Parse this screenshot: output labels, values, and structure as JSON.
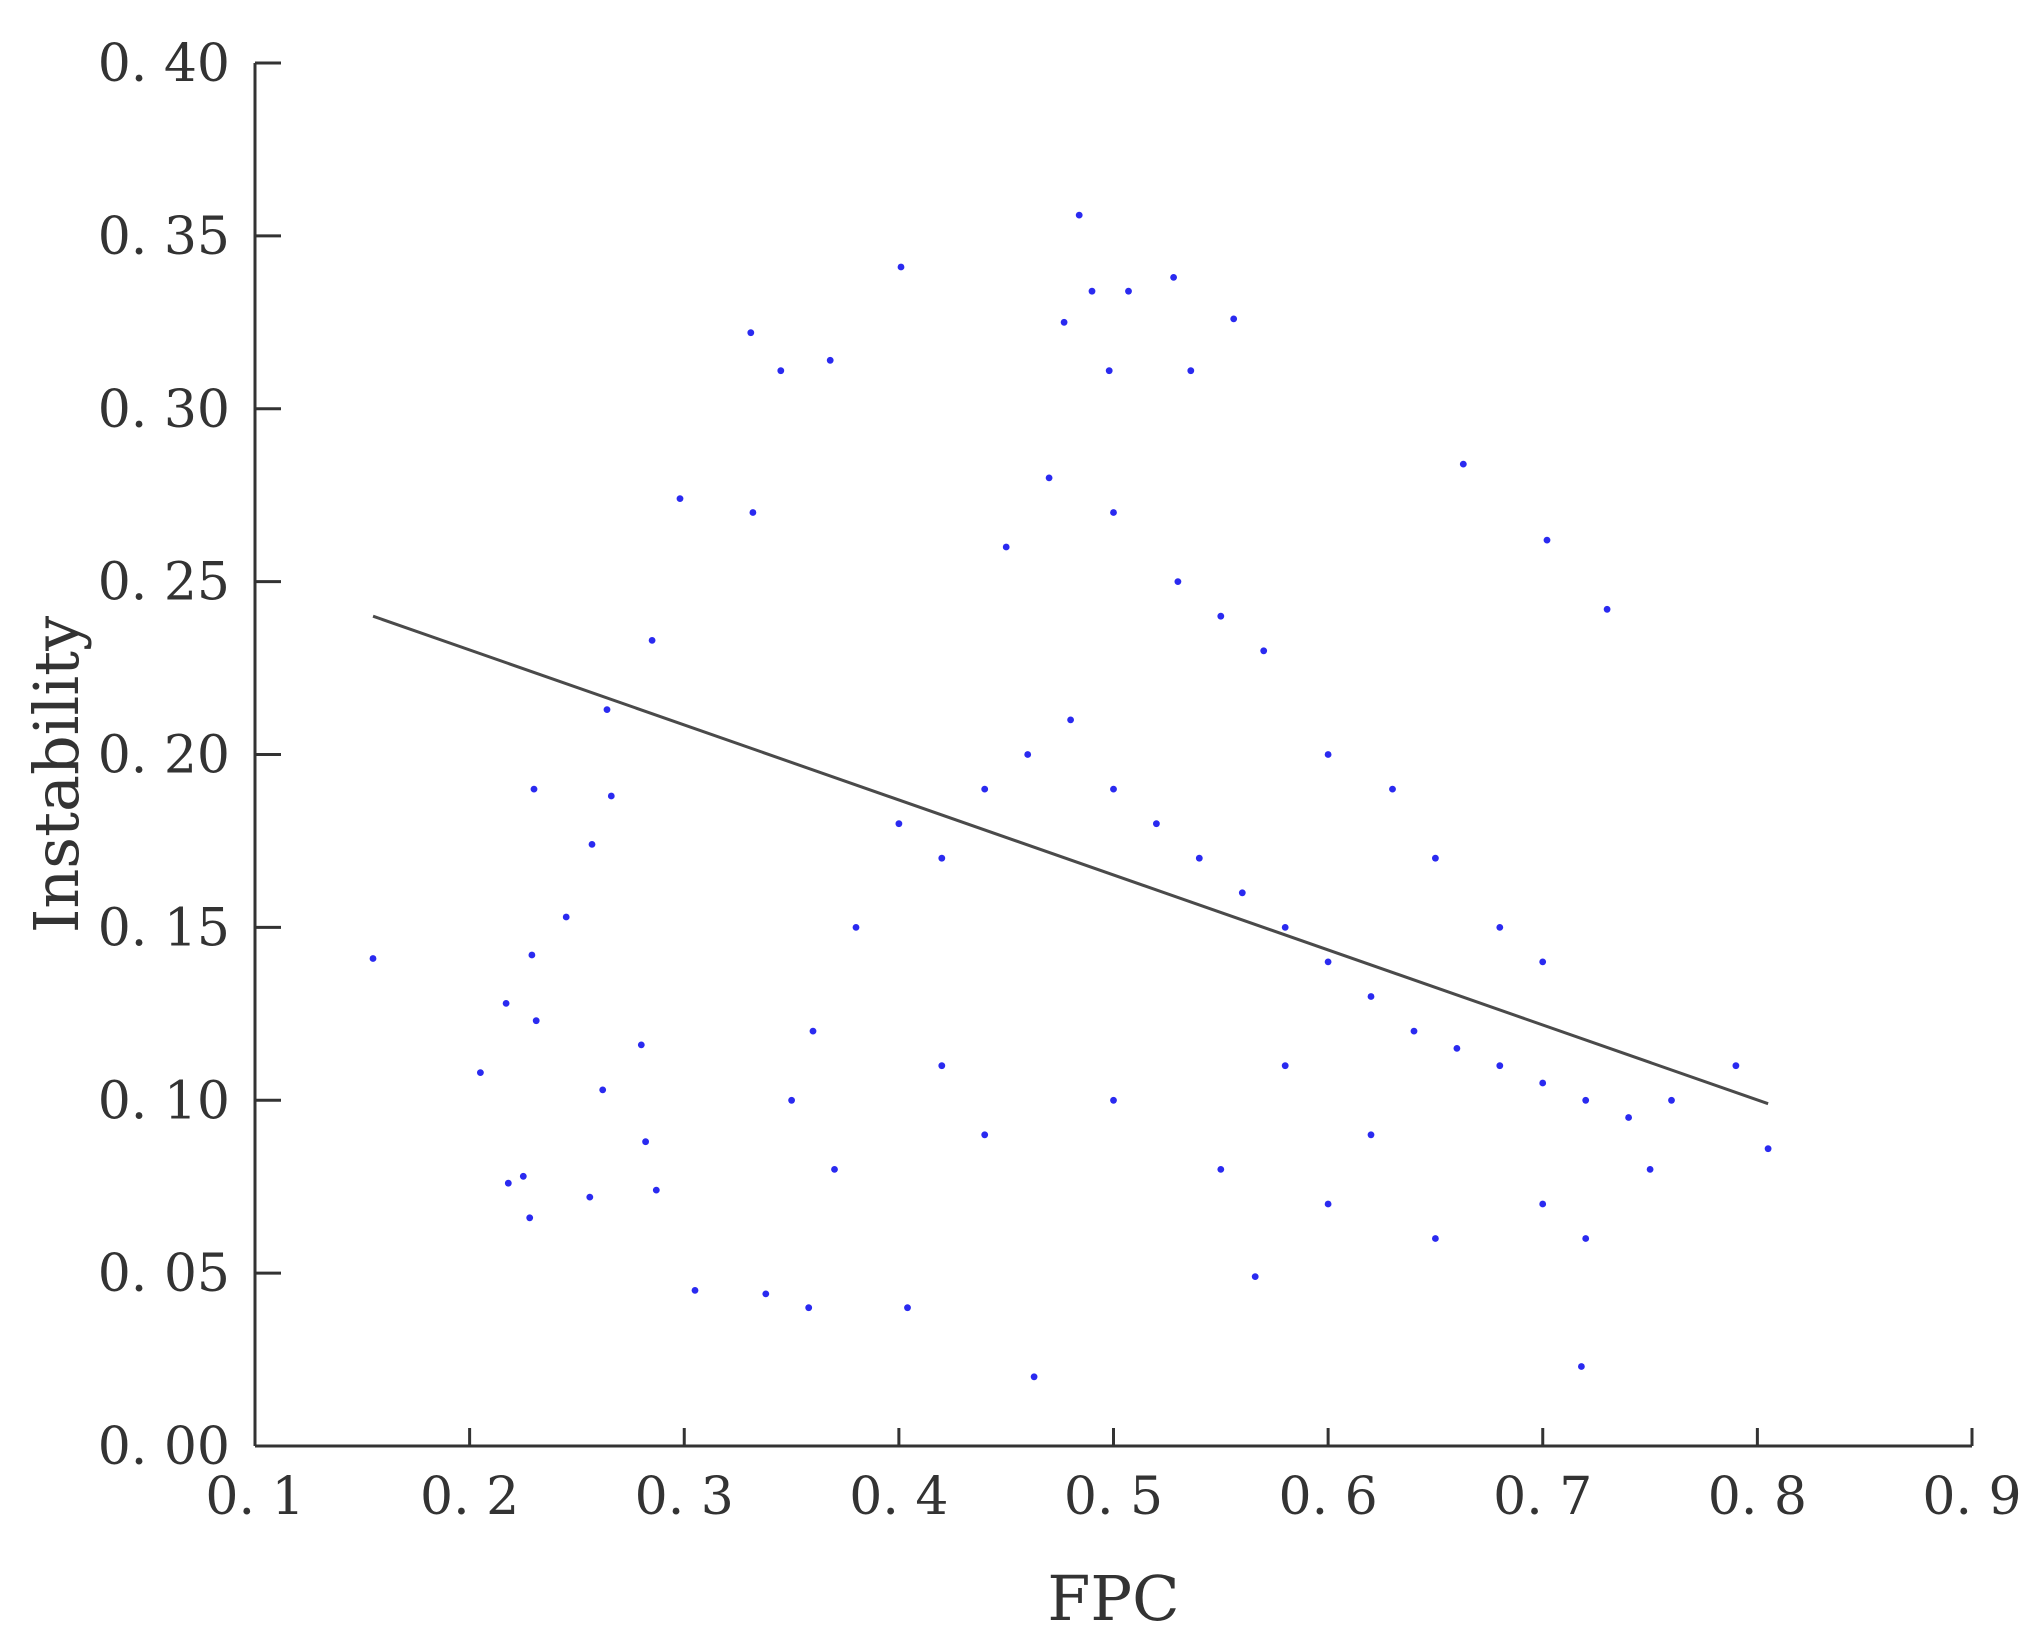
{
  "chart_data": {
    "type": "scatter",
    "title": "",
    "xlabel": "FPC",
    "ylabel": "Instability",
    "xlim": [
      0.1,
      0.9
    ],
    "ylim": [
      0.0,
      0.4
    ],
    "x_ticks": [
      0.1,
      0.2,
      0.3,
      0.4,
      0.5,
      0.6,
      0.7,
      0.8,
      0.9
    ],
    "y_ticks": [
      0.0,
      0.05,
      0.1,
      0.15,
      0.2,
      0.25,
      0.3,
      0.35,
      0.4
    ],
    "x_tick_labels": [
      "0. 1",
      "0. 2",
      "0. 3",
      "0. 4",
      "0. 5",
      "0. 6",
      "0. 7",
      "0. 8",
      "0. 9"
    ],
    "y_tick_labels": [
      "0. 00",
      "0. 05",
      "0. 10",
      "0. 15",
      "0. 20",
      "0. 25",
      "0. 30",
      "0. 35",
      "0. 40"
    ],
    "grid": false,
    "point_color": "#2a2af0",
    "line_color": "#4a4a4a",
    "fit_line": {
      "x": [
        0.155,
        0.805
      ],
      "y": [
        0.24,
        0.099
      ]
    },
    "series": [
      {
        "points": [
          [
            0.155,
            0.141
          ],
          [
            0.205,
            0.108
          ],
          [
            0.217,
            0.128
          ],
          [
            0.218,
            0.076
          ],
          [
            0.225,
            0.078
          ],
          [
            0.228,
            0.066
          ],
          [
            0.229,
            0.142
          ],
          [
            0.23,
            0.19
          ],
          [
            0.231,
            0.123
          ],
          [
            0.245,
            0.153
          ],
          [
            0.256,
            0.072
          ],
          [
            0.257,
            0.174
          ],
          [
            0.262,
            0.103
          ],
          [
            0.264,
            0.213
          ],
          [
            0.266,
            0.188
          ],
          [
            0.28,
            0.116
          ],
          [
            0.282,
            0.088
          ],
          [
            0.285,
            0.233
          ],
          [
            0.287,
            0.074
          ],
          [
            0.298,
            0.274
          ],
          [
            0.305,
            0.045
          ],
          [
            0.331,
            0.322
          ],
          [
            0.332,
            0.27
          ],
          [
            0.338,
            0.044
          ],
          [
            0.345,
            0.311
          ],
          [
            0.358,
            0.04
          ],
          [
            0.368,
            0.314
          ],
          [
            0.401,
            0.341
          ],
          [
            0.404,
            0.04
          ],
          [
            0.463,
            0.02
          ],
          [
            0.477,
            0.325
          ],
          [
            0.484,
            0.356
          ],
          [
            0.49,
            0.334
          ],
          [
            0.498,
            0.311
          ],
          [
            0.507,
            0.334
          ],
          [
            0.528,
            0.338
          ],
          [
            0.536,
            0.311
          ],
          [
            0.556,
            0.326
          ],
          [
            0.566,
            0.049
          ],
          [
            0.663,
            0.284
          ],
          [
            0.702,
            0.262
          ],
          [
            0.718,
            0.023
          ],
          [
            0.73,
            0.242
          ],
          [
            0.805,
            0.086
          ],
          [
            0.79,
            0.11
          ],
          [
            0.4,
            0.18
          ],
          [
            0.42,
            0.17
          ],
          [
            0.44,
            0.19
          ],
          [
            0.46,
            0.2
          ],
          [
            0.48,
            0.21
          ],
          [
            0.5,
            0.19
          ],
          [
            0.52,
            0.18
          ],
          [
            0.54,
            0.17
          ],
          [
            0.56,
            0.16
          ],
          [
            0.58,
            0.15
          ],
          [
            0.6,
            0.14
          ],
          [
            0.62,
            0.13
          ],
          [
            0.64,
            0.12
          ],
          [
            0.66,
            0.115
          ],
          [
            0.68,
            0.11
          ],
          [
            0.7,
            0.105
          ],
          [
            0.72,
            0.1
          ],
          [
            0.74,
            0.095
          ],
          [
            0.76,
            0.1
          ],
          [
            0.45,
            0.26
          ],
          [
            0.47,
            0.28
          ],
          [
            0.5,
            0.27
          ],
          [
            0.53,
            0.25
          ],
          [
            0.55,
            0.24
          ],
          [
            0.57,
            0.23
          ],
          [
            0.6,
            0.2
          ],
          [
            0.63,
            0.19
          ],
          [
            0.65,
            0.17
          ],
          [
            0.68,
            0.15
          ],
          [
            0.7,
            0.14
          ],
          [
            0.38,
            0.15
          ],
          [
            0.36,
            0.12
          ],
          [
            0.35,
            0.1
          ],
          [
            0.37,
            0.08
          ],
          [
            0.42,
            0.11
          ],
          [
            0.44,
            0.09
          ],
          [
            0.5,
            0.1
          ],
          [
            0.55,
            0.08
          ],
          [
            0.6,
            0.07
          ],
          [
            0.65,
            0.06
          ],
          [
            0.7,
            0.07
          ],
          [
            0.72,
            0.06
          ],
          [
            0.75,
            0.08
          ],
          [
            0.62,
            0.09
          ],
          [
            0.58,
            0.11
          ]
        ]
      }
    ]
  }
}
